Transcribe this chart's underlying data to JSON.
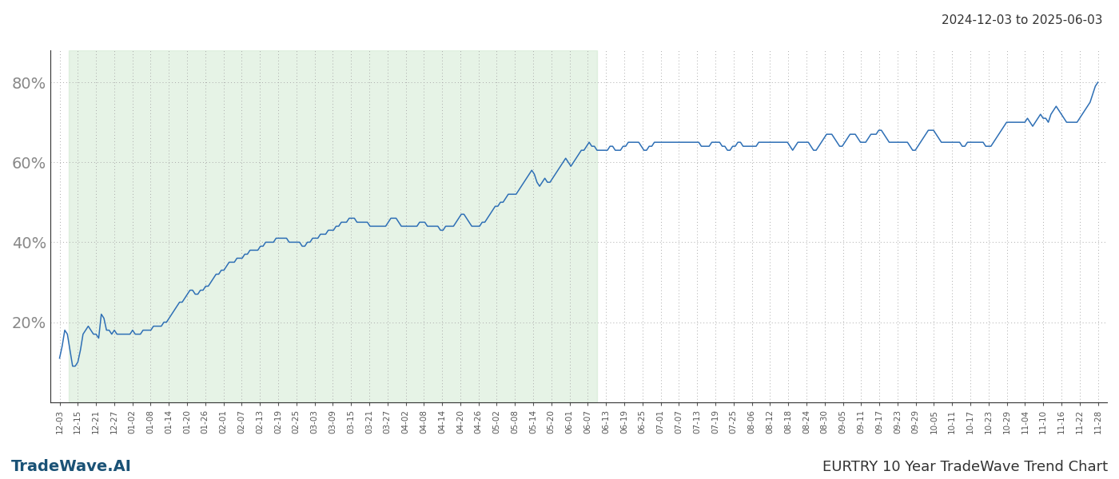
{
  "title_top_right": "2024-12-03 to 2025-06-03",
  "label_bottom_left": "TradeWave.AI",
  "label_bottom_right": "EURTRY 10 Year TradeWave Trend Chart",
  "background_color": "#ffffff",
  "line_color": "#2e6fb5",
  "shade_color": "#c8e6c9",
  "shade_alpha": 0.45,
  "yticks": [
    20,
    40,
    60,
    80
  ],
  "ylim": [
    0,
    88
  ],
  "x_labels": [
    "12-03",
    "12-15",
    "12-21",
    "12-27",
    "01-02",
    "01-08",
    "01-14",
    "01-20",
    "01-26",
    "02-01",
    "02-07",
    "02-13",
    "02-19",
    "02-25",
    "03-03",
    "03-09",
    "03-15",
    "03-21",
    "03-27",
    "04-02",
    "04-08",
    "04-14",
    "04-20",
    "04-26",
    "05-02",
    "05-08",
    "05-14",
    "05-20",
    "06-01",
    "06-07",
    "06-13",
    "06-19",
    "06-25",
    "07-01",
    "07-07",
    "07-13",
    "07-19",
    "07-25",
    "08-06",
    "08-12",
    "08-18",
    "08-24",
    "08-30",
    "09-05",
    "09-11",
    "09-17",
    "09-23",
    "09-29",
    "10-05",
    "10-11",
    "10-17",
    "10-23",
    "10-29",
    "11-04",
    "11-10",
    "11-16",
    "11-22",
    "11-28"
  ],
  "shade_label_start": "12-15",
  "shade_label_end": "06-07",
  "y_values": [
    11,
    14,
    18,
    17,
    13,
    9,
    9,
    10,
    13,
    17,
    18,
    19,
    18,
    17,
    17,
    16,
    22,
    21,
    18,
    18,
    17,
    18,
    17,
    17,
    17,
    17,
    17,
    17,
    18,
    17,
    17,
    17,
    18,
    18,
    18,
    18,
    19,
    19,
    19,
    19,
    20,
    20,
    21,
    22,
    23,
    24,
    25,
    25,
    26,
    27,
    28,
    28,
    27,
    27,
    28,
    28,
    29,
    29,
    30,
    31,
    32,
    32,
    33,
    33,
    34,
    35,
    35,
    35,
    36,
    36,
    36,
    37,
    37,
    38,
    38,
    38,
    38,
    39,
    39,
    40,
    40,
    40,
    40,
    41,
    41,
    41,
    41,
    41,
    40,
    40,
    40,
    40,
    40,
    39,
    39,
    40,
    40,
    41,
    41,
    41,
    42,
    42,
    42,
    43,
    43,
    43,
    44,
    44,
    45,
    45,
    45,
    46,
    46,
    46,
    45,
    45,
    45,
    45,
    45,
    44,
    44,
    44,
    44,
    44,
    44,
    44,
    45,
    46,
    46,
    46,
    45,
    44,
    44,
    44,
    44,
    44,
    44,
    44,
    45,
    45,
    45,
    44,
    44,
    44,
    44,
    44,
    43,
    43,
    44,
    44,
    44,
    44,
    45,
    46,
    47,
    47,
    46,
    45,
    44,
    44,
    44,
    44,
    45,
    45,
    46,
    47,
    48,
    49,
    49,
    50,
    50,
    51,
    52,
    52,
    52,
    52,
    53,
    54,
    55,
    56,
    57,
    58,
    57,
    55,
    54,
    55,
    56,
    55,
    55,
    56,
    57,
    58,
    59,
    60,
    61,
    60,
    59,
    60,
    61,
    62,
    63,
    63,
    64,
    65,
    64,
    64,
    63,
    63,
    63,
    63,
    63,
    64,
    64,
    63,
    63,
    63,
    64,
    64,
    65,
    65,
    65,
    65,
    65,
    64,
    63,
    63,
    64,
    64,
    65,
    65,
    65,
    65,
    65,
    65,
    65,
    65,
    65,
    65,
    65,
    65,
    65,
    65,
    65,
    65,
    65,
    65,
    64,
    64,
    64,
    64,
    65,
    65,
    65,
    65,
    64,
    64,
    63,
    63,
    64,
    64,
    65,
    65,
    64,
    64,
    64,
    64,
    64,
    64,
    65,
    65,
    65,
    65,
    65,
    65,
    65,
    65,
    65,
    65,
    65,
    65,
    64,
    63,
    64,
    65,
    65,
    65,
    65,
    65,
    64,
    63,
    63,
    64,
    65,
    66,
    67,
    67,
    67,
    66,
    65,
    64,
    64,
    65,
    66,
    67,
    67,
    67,
    66,
    65,
    65,
    65,
    66,
    67,
    67,
    67,
    68,
    68,
    67,
    66,
    65,
    65,
    65,
    65,
    65,
    65,
    65,
    65,
    64,
    63,
    63,
    64,
    65,
    66,
    67,
    68,
    68,
    68,
    67,
    66,
    65,
    65,
    65,
    65,
    65,
    65,
    65,
    65,
    64,
    64,
    65,
    65,
    65,
    65,
    65,
    65,
    65,
    64,
    64,
    64,
    65,
    66,
    67,
    68,
    69,
    70,
    70,
    70,
    70,
    70,
    70,
    70,
    70,
    71,
    70,
    69,
    70,
    71,
    72,
    71,
    71,
    70,
    72,
    73,
    74,
    73,
    72,
    71,
    70,
    70,
    70,
    70,
    70,
    71,
    72,
    73,
    74,
    75,
    77,
    79,
    80
  ]
}
